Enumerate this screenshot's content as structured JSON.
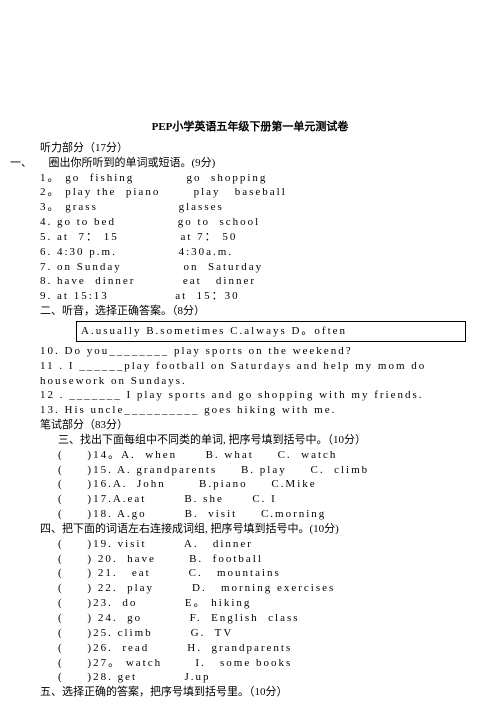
{
  "title": "PEP小学英语五年级下册第一单元测试卷",
  "listening_header": "听力部分（17分）",
  "section1_label": "一、",
  "section1_title": "圈出你所听到的单词或短语。(9分)",
  "s1": [
    {
      "n": "1。",
      "a": "go  fishing",
      "b": "go  shopping"
    },
    {
      "n": "2。",
      "a": "play the  piano",
      "b": "play   baseball"
    },
    {
      "n": "3。",
      "a": "grass",
      "b": "glasses"
    },
    {
      "n": "4.",
      "a": "go to bed",
      "b": "go to  school"
    },
    {
      "n": "5.",
      "a": "at  7： 15",
      "b": "at 7： 50"
    },
    {
      "n": "6.",
      "a": "4:30 p.m.",
      "b": "4:30a.m."
    },
    {
      "n": "7.",
      "a": "on Sunday",
      "b": "on  Saturday"
    },
    {
      "n": "8.",
      "a": "have  dinner",
      "b": "eat   dinner"
    },
    {
      "n": "9.",
      "a": "at 15:13",
      "b": "at  15：30"
    }
  ],
  "section2_title": "二、听音，选择正确答案。（8分）",
  "box_opts": "A.usually    B.sometimes    C.always    D。often",
  "q10": "10.  Do you________ play  sports on the weekend?",
  "q11": "11 .   I ______play   football on Saturdays  and help my mom  do housework  on  Sundays.",
  "q12": "12 .   _______ I play   sports and  go shopping  with  my  friends.",
  "q13": "13. His  uncle__________  goes hiking  with me.",
  "written_header": "笔试部分（83分）",
  "section3_title": "三、找出下面每组中不同类的单词, 把序号填到括号中。（10分）",
  "s3": [
    "(     )14。A.  when      B. what     C.  watch",
    "(     )15. A. grandparents     B. play     C.  climb",
    "(     )16.A.  John       B.piano     C.Mike",
    "(     )17.A.eat        B. she      C. I",
    "(     )18. A.go        B.  visit     C.morning"
  ],
  "section4_title": "四、把下面的词语左右连接成词组, 把序号填到括号中。(10分)",
  "s4": [
    "(     )19. visit        A.   dinner",
    "(     ) 20.  have       B.  football",
    "(     ) 21.   eat        C.   mountains",
    "(     ) 22.  play        D.   morning exercises",
    "(     )23.  do          E。 hiking",
    "(     ) 24.  go          F.  English  class",
    "(     )25. climb        G.  TV",
    "(     )26.  read        H.  grandparents",
    "(     )27。 watch       I.   some books",
    "(     )28. get          J.up"
  ],
  "section5_title": "五、选择正确的答案，把序号填到括号里。（10分）"
}
